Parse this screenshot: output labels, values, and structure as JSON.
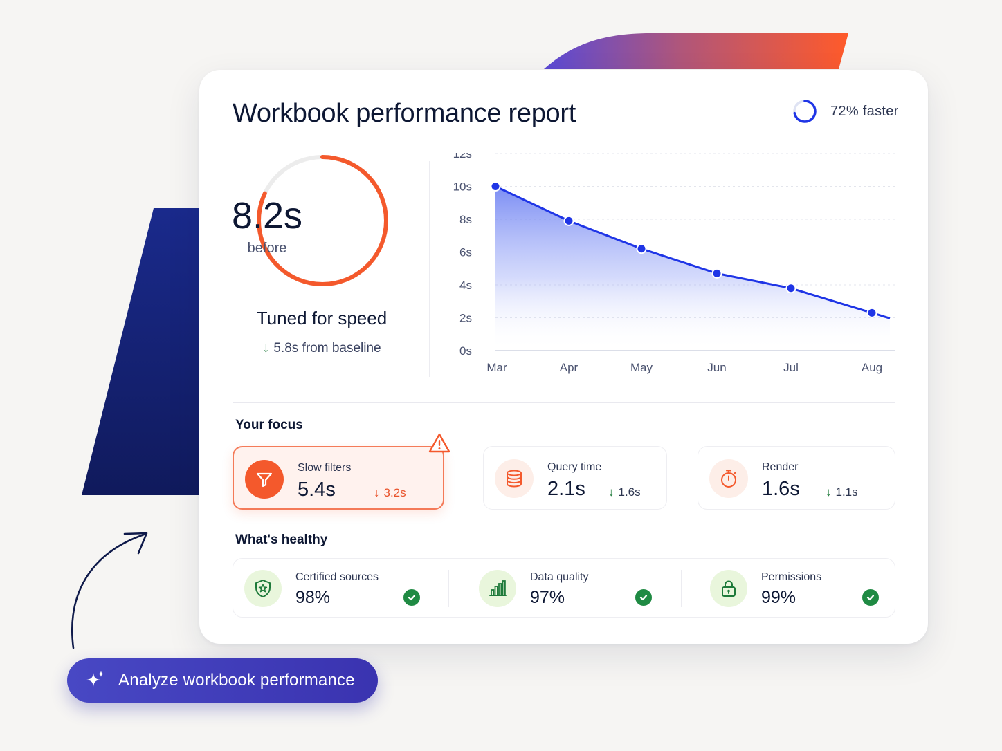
{
  "report": {
    "title": "Workbook performance report",
    "speed_badge": {
      "label": "72% faster",
      "progress": 0.72
    }
  },
  "summary": {
    "value": "8.2s",
    "caption": "before",
    "ring_progress": 0.82,
    "headline": "Tuned for speed",
    "delta": "5.8s from baseline",
    "delta_arrow": "↓"
  },
  "chart_data": {
    "type": "area",
    "x": [
      "Mar",
      "Apr",
      "May",
      "Jun",
      "Jul",
      "Aug"
    ],
    "values": [
      10.0,
      7.9,
      6.2,
      4.7,
      3.8,
      2.3
    ],
    "y_ticks": [
      "12s",
      "10s",
      "8s",
      "6s",
      "4s",
      "2s",
      "0s"
    ],
    "ylim": [
      0,
      12
    ],
    "grid": true,
    "xlabel": "",
    "ylabel": ""
  },
  "focus": {
    "label": "Your focus",
    "cards": [
      {
        "label": "Slow filters",
        "value": "5.4s",
        "delta": "3.2s",
        "icon": "filter-icon",
        "alert": true
      },
      {
        "label": "Query time",
        "value": "2.1s",
        "delta": "1.6s",
        "icon": "database-icon",
        "alert": false
      },
      {
        "label": "Render",
        "value": "1.6s",
        "delta": "1.1s",
        "icon": "stopwatch-icon",
        "alert": false
      }
    ],
    "arrow": "↓"
  },
  "healthy": {
    "label": "What's healthy",
    "items": [
      {
        "label": "Certified sources",
        "value": "98%",
        "icon": "shield-star-icon"
      },
      {
        "label": "Data quality",
        "value": "97%",
        "icon": "bar-chart-icon"
      },
      {
        "label": "Permissions",
        "value": "99%",
        "icon": "lock-icon"
      }
    ]
  },
  "cta": {
    "label": "Analyze workbook performance",
    "icon": "sparkle-icon"
  },
  "colors": {
    "accent_blue": "#1f35e6",
    "accent_orange": "#f4592c",
    "healthy_green": "#1f8a43",
    "navy": "#0d1733"
  }
}
